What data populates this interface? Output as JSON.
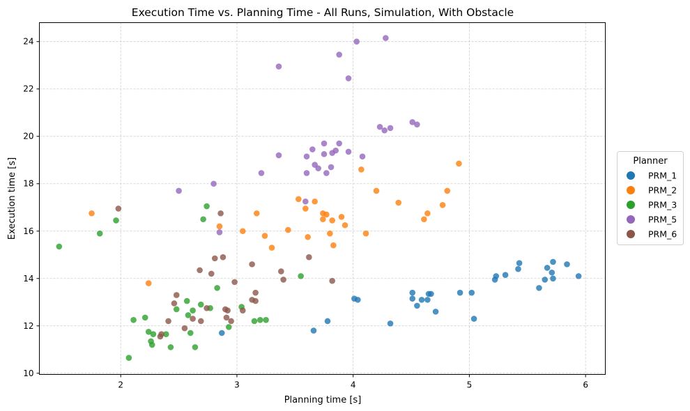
{
  "chart_data": {
    "type": "scatter",
    "title": "Execution Time vs. Planning Time - All Runs, Simulation, With Obstacle",
    "xlabel": "Planning time [s]",
    "ylabel": "Execution time [s]",
    "xlim": [
      1.3,
      6.17
    ],
    "ylim": [
      9.95,
      24.8
    ],
    "xticks": [
      2,
      3,
      4,
      5,
      6
    ],
    "yticks": [
      10,
      12,
      14,
      16,
      18,
      20,
      22,
      24
    ],
    "grid": true,
    "legend": {
      "title": "Planner",
      "placement": "center-right-outside"
    },
    "series": [
      {
        "name": "PRM_1",
        "color": "#1f77b4",
        "points": [
          [
            2.87,
            11.7
          ],
          [
            3.66,
            11.8
          ],
          [
            3.78,
            12.2
          ],
          [
            4.01,
            13.15
          ],
          [
            4.04,
            13.1
          ],
          [
            4.32,
            12.1
          ],
          [
            4.51,
            13.4
          ],
          [
            4.51,
            13.15
          ],
          [
            4.55,
            12.85
          ],
          [
            4.59,
            13.1
          ],
          [
            4.64,
            13.1
          ],
          [
            4.65,
            13.35
          ],
          [
            4.67,
            13.35
          ],
          [
            4.71,
            12.6
          ],
          [
            4.92,
            13.4
          ],
          [
            5.02,
            13.4
          ],
          [
            5.04,
            12.3
          ],
          [
            5.22,
            13.95
          ],
          [
            5.23,
            14.1
          ],
          [
            5.31,
            14.15
          ],
          [
            5.42,
            14.4
          ],
          [
            5.43,
            14.65
          ],
          [
            5.6,
            13.6
          ],
          [
            5.65,
            13.95
          ],
          [
            5.67,
            14.45
          ],
          [
            5.71,
            14.25
          ],
          [
            5.72,
            14.7
          ],
          [
            5.72,
            14.0
          ],
          [
            5.84,
            14.6
          ],
          [
            5.94,
            14.1
          ]
        ]
      },
      {
        "name": "PRM_2",
        "color": "#ff7f0e",
        "points": [
          [
            1.75,
            16.75
          ],
          [
            2.24,
            13.8
          ],
          [
            2.85,
            16.2
          ],
          [
            3.05,
            16.0
          ],
          [
            3.17,
            16.75
          ],
          [
            3.24,
            15.8
          ],
          [
            3.3,
            15.3
          ],
          [
            3.44,
            16.05
          ],
          [
            3.53,
            17.35
          ],
          [
            3.59,
            16.95
          ],
          [
            3.61,
            15.75
          ],
          [
            3.67,
            17.25
          ],
          [
            3.74,
            16.5
          ],
          [
            3.74,
            16.75
          ],
          [
            3.77,
            16.7
          ],
          [
            3.8,
            15.9
          ],
          [
            3.82,
            16.45
          ],
          [
            3.83,
            15.4
          ],
          [
            3.9,
            16.6
          ],
          [
            3.93,
            16.25
          ],
          [
            4.07,
            18.6
          ],
          [
            4.11,
            15.9
          ],
          [
            4.2,
            17.7
          ],
          [
            4.39,
            17.2
          ],
          [
            4.61,
            16.5
          ],
          [
            4.64,
            16.75
          ],
          [
            4.77,
            17.1
          ],
          [
            4.81,
            17.7
          ],
          [
            4.91,
            18.85
          ]
        ]
      },
      {
        "name": "PRM_3",
        "color": "#2ca02c",
        "points": [
          [
            1.47,
            15.35
          ],
          [
            1.82,
            15.9
          ],
          [
            1.96,
            16.45
          ],
          [
            2.07,
            10.65
          ],
          [
            2.11,
            12.25
          ],
          [
            2.21,
            12.35
          ],
          [
            2.24,
            11.75
          ],
          [
            2.26,
            11.35
          ],
          [
            2.27,
            11.2
          ],
          [
            2.28,
            11.65
          ],
          [
            2.39,
            11.65
          ],
          [
            2.43,
            11.1
          ],
          [
            2.48,
            12.7
          ],
          [
            2.57,
            13.05
          ],
          [
            2.58,
            12.45
          ],
          [
            2.6,
            11.7
          ],
          [
            2.62,
            12.65
          ],
          [
            2.64,
            11.1
          ],
          [
            2.69,
            12.9
          ],
          [
            2.71,
            16.5
          ],
          [
            2.74,
            17.05
          ],
          [
            2.77,
            12.75
          ],
          [
            2.83,
            13.6
          ],
          [
            3.04,
            12.8
          ],
          [
            3.2,
            12.25
          ],
          [
            3.25,
            12.25
          ],
          [
            3.15,
            12.2
          ],
          [
            3.55,
            14.1
          ],
          [
            2.93,
            11.95
          ]
        ]
      },
      {
        "name": "PRM_5",
        "color": "#9467bd",
        "points": [
          [
            2.5,
            17.7
          ],
          [
            2.8,
            18.0
          ],
          [
            2.85,
            15.95
          ],
          [
            3.21,
            18.45
          ],
          [
            3.36,
            22.95
          ],
          [
            3.36,
            19.2
          ],
          [
            3.59,
            17.25
          ],
          [
            3.6,
            19.15
          ],
          [
            3.6,
            18.45
          ],
          [
            3.65,
            19.45
          ],
          [
            3.67,
            18.8
          ],
          [
            3.7,
            18.65
          ],
          [
            3.75,
            19.7
          ],
          [
            3.75,
            19.25
          ],
          [
            3.77,
            18.45
          ],
          [
            3.81,
            18.7
          ],
          [
            3.82,
            19.3
          ],
          [
            3.85,
            19.4
          ],
          [
            3.88,
            19.7
          ],
          [
            3.88,
            23.45
          ],
          [
            3.96,
            19.35
          ],
          [
            3.96,
            22.45
          ],
          [
            4.03,
            24.0
          ],
          [
            4.08,
            19.15
          ],
          [
            4.23,
            20.4
          ],
          [
            4.27,
            20.25
          ],
          [
            4.28,
            24.15
          ],
          [
            4.32,
            20.35
          ],
          [
            4.51,
            20.6
          ],
          [
            4.55,
            20.5
          ]
        ]
      },
      {
        "name": "PRM_6",
        "color": "#8c564b",
        "points": [
          [
            1.98,
            16.95
          ],
          [
            2.34,
            11.55
          ],
          [
            2.35,
            11.65
          ],
          [
            2.41,
            12.2
          ],
          [
            2.46,
            12.95
          ],
          [
            2.48,
            13.3
          ],
          [
            2.55,
            11.9
          ],
          [
            2.62,
            12.3
          ],
          [
            2.68,
            14.35
          ],
          [
            2.69,
            12.2
          ],
          [
            2.74,
            12.75
          ],
          [
            2.78,
            14.2
          ],
          [
            2.81,
            14.85
          ],
          [
            2.86,
            16.75
          ],
          [
            2.88,
            14.9
          ],
          [
            2.9,
            12.7
          ],
          [
            2.91,
            12.35
          ],
          [
            2.92,
            12.65
          ],
          [
            2.95,
            12.2
          ],
          [
            2.98,
            13.85
          ],
          [
            3.05,
            12.65
          ],
          [
            3.13,
            14.6
          ],
          [
            3.13,
            13.1
          ],
          [
            3.16,
            13.05
          ],
          [
            3.16,
            13.4
          ],
          [
            3.38,
            14.3
          ],
          [
            3.4,
            13.95
          ],
          [
            3.62,
            14.9
          ],
          [
            3.82,
            13.9
          ]
        ]
      }
    ]
  }
}
